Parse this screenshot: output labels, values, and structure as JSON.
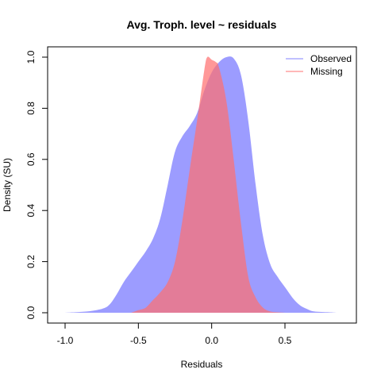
{
  "chart_data": {
    "type": "area",
    "title": "Avg. Troph. level ~ residuals",
    "xlabel": "Residuals",
    "ylabel": "Density (SU)",
    "xlim": [
      -1.1,
      0.9
    ],
    "ylim": [
      0,
      1.0
    ],
    "x_ticks": [
      -1.0,
      -0.5,
      0.0,
      0.5
    ],
    "x_tick_labels": [
      "-1.0",
      "-0.5",
      "0.0",
      "0.5"
    ],
    "y_ticks": [
      0.0,
      0.2,
      0.4,
      0.6,
      0.8,
      1.0
    ],
    "y_tick_labels": [
      "0.0",
      "0.2",
      "0.4",
      "0.6",
      "0.8",
      "1.0"
    ],
    "grid": false,
    "legend_position": "top-right",
    "series": [
      {
        "name": "Observed",
        "color": "#8080ff",
        "fill_opacity": 0.78,
        "x": [
          -1.0,
          -0.85,
          -0.75,
          -0.7,
          -0.65,
          -0.6,
          -0.55,
          -0.5,
          -0.45,
          -0.4,
          -0.35,
          -0.3,
          -0.25,
          -0.2,
          -0.15,
          -0.1,
          -0.05,
          0.0,
          0.05,
          0.1,
          0.15,
          0.2,
          0.25,
          0.3,
          0.35,
          0.4,
          0.45,
          0.5,
          0.55,
          0.6,
          0.65,
          0.7,
          0.8,
          0.85
        ],
        "y": [
          0.0,
          0.005,
          0.015,
          0.03,
          0.07,
          0.12,
          0.16,
          0.2,
          0.24,
          0.29,
          0.37,
          0.5,
          0.63,
          0.69,
          0.73,
          0.78,
          0.87,
          0.94,
          0.98,
          1.0,
          0.995,
          0.93,
          0.75,
          0.5,
          0.3,
          0.19,
          0.14,
          0.1,
          0.06,
          0.03,
          0.015,
          0.005,
          0.002,
          0.0
        ]
      },
      {
        "name": "Missing",
        "color": "#ff7070",
        "fill_opacity": 0.72,
        "x": [
          -0.55,
          -0.5,
          -0.45,
          -0.4,
          -0.35,
          -0.3,
          -0.25,
          -0.2,
          -0.15,
          -0.1,
          -0.05,
          -0.03,
          0.0,
          0.03,
          0.05,
          0.1,
          0.15,
          0.2,
          0.25,
          0.3,
          0.35,
          0.4,
          0.45,
          0.5
        ],
        "y": [
          0.0,
          0.01,
          0.02,
          0.05,
          0.08,
          0.12,
          0.2,
          0.36,
          0.56,
          0.75,
          0.95,
          1.0,
          0.99,
          0.98,
          0.96,
          0.83,
          0.6,
          0.35,
          0.14,
          0.06,
          0.02,
          0.005,
          0.002,
          0.0
        ]
      }
    ]
  }
}
